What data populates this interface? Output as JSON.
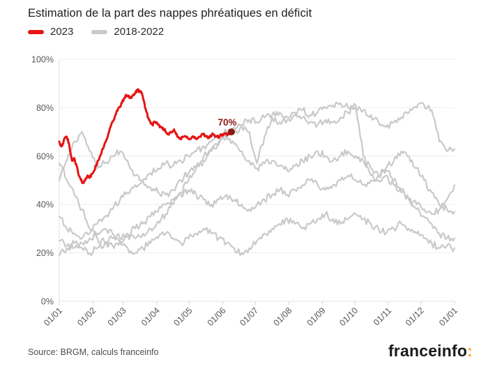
{
  "header": {
    "title": "Estimation de la part des nappes phréatiques en déficit"
  },
  "legend": [
    {
      "label": "2023",
      "color": "#e51515"
    },
    {
      "label": "2018-2022",
      "color": "#c9c9c9"
    }
  ],
  "footer": {
    "source": "Source: BRGM, calculs franceinfo",
    "logo_text": "franceinfo",
    "logo_colon": ":",
    "logo_colon_color": "#f9a51b"
  },
  "chart_data": {
    "type": "line",
    "title": "Estimation de la part des nappes phréatiques en déficit",
    "xlabel": "",
    "ylabel": "",
    "x_unit": "day_of_year",
    "xlim_days": [
      0,
      365
    ],
    "ylim": [
      0,
      100
    ],
    "grid": "horizontal",
    "legend_position": "top-left",
    "y_ticks": [
      0,
      20,
      40,
      60,
      80,
      100
    ],
    "y_tick_labels": [
      "0%",
      "20%",
      "40%",
      "60%",
      "80%",
      "100%"
    ],
    "x_tick_days": [
      0,
      31,
      59,
      90,
      120,
      151,
      181,
      212,
      243,
      273,
      304,
      334,
      365
    ],
    "x_tick_labels": [
      "01/01",
      "01/02",
      "01/03",
      "01/04",
      "01/05",
      "01/06",
      "01/07",
      "01/08",
      "01/09",
      "01/10",
      "01/11",
      "01/12",
      "01/01"
    ],
    "axis_color": "#e3e3e3",
    "grid_color": "#eeeeee",
    "tick_color": "#d8d8d8",
    "label_color": "#55565a",
    "annotation": {
      "text": "70%",
      "color": "#8c1713"
    },
    "series": [
      {
        "name": "2023",
        "color": "#e51515",
        "width": 3,
        "noise": 0.6,
        "points": [
          [
            0,
            66
          ],
          [
            2,
            64
          ],
          [
            4,
            66
          ],
          [
            6,
            68
          ],
          [
            8,
            67
          ],
          [
            10,
            62
          ],
          [
            12,
            58
          ],
          [
            14,
            59
          ],
          [
            16,
            56
          ],
          [
            18,
            52
          ],
          [
            20,
            50
          ],
          [
            22,
            49
          ],
          [
            24,
            50
          ],
          [
            26,
            52
          ],
          [
            28,
            51
          ],
          [
            31,
            53
          ],
          [
            34,
            56
          ],
          [
            37,
            59
          ],
          [
            40,
            63
          ],
          [
            43,
            66
          ],
          [
            46,
            70
          ],
          [
            49,
            74
          ],
          [
            52,
            77
          ],
          [
            55,
            80
          ],
          [
            58,
            82
          ],
          [
            60,
            84
          ],
          [
            62,
            85
          ],
          [
            64,
            85
          ],
          [
            66,
            84
          ],
          [
            68,
            85
          ],
          [
            70,
            86
          ],
          [
            72,
            87
          ],
          [
            74,
            87
          ],
          [
            76,
            86
          ],
          [
            78,
            83
          ],
          [
            80,
            79
          ],
          [
            82,
            76
          ],
          [
            84,
            74
          ],
          [
            86,
            73
          ],
          [
            88,
            74
          ],
          [
            91,
            73
          ],
          [
            94,
            72
          ],
          [
            97,
            71
          ],
          [
            100,
            69
          ],
          [
            103,
            70
          ],
          [
            106,
            71
          ],
          [
            109,
            68
          ],
          [
            112,
            67
          ],
          [
            115,
            68
          ],
          [
            118,
            68
          ],
          [
            121,
            67
          ],
          [
            124,
            68
          ],
          [
            127,
            67
          ],
          [
            130,
            68
          ],
          [
            133,
            69
          ],
          [
            136,
            68
          ],
          [
            139,
            68
          ],
          [
            142,
            69
          ],
          [
            145,
            68
          ],
          [
            148,
            68
          ],
          [
            151,
            69
          ],
          [
            154,
            69
          ],
          [
            157,
            69
          ],
          [
            159,
            70
          ]
        ],
        "end_marker": {
          "value_label": "70%",
          "dot_color": "#8c1713",
          "dot_radius": 5
        }
      },
      {
        "name": "2018",
        "color": "#c9c9c9",
        "width": 2.2,
        "noise": 1.5,
        "step_days": 7.019,
        "values": [
          50,
          58,
          66,
          70,
          62,
          55,
          57,
          60,
          62,
          58,
          52,
          50,
          47,
          45,
          44,
          46,
          50,
          53,
          55,
          58,
          62,
          65,
          68,
          70,
          72,
          70,
          57,
          68,
          76,
          74,
          75,
          77,
          76,
          74,
          73,
          75,
          74,
          76,
          78,
          80,
          79,
          77,
          74,
          72,
          74,
          76,
          78,
          80,
          81,
          79,
          66,
          62,
          63
        ]
      },
      {
        "name": "2019",
        "color": "#c9c9c9",
        "width": 2.2,
        "noise": 1.5,
        "step_days": 7.019,
        "values": [
          35,
          30,
          28,
          26,
          28,
          32,
          35,
          38,
          42,
          45,
          48,
          50,
          53,
          55,
          57,
          56,
          58,
          60,
          62,
          64,
          66,
          68,
          70,
          72,
          73,
          75,
          74,
          76,
          77,
          78,
          76,
          78,
          79,
          77,
          78,
          80,
          81,
          82,
          80,
          81,
          60,
          52,
          50,
          52,
          48,
          45,
          42,
          38,
          35,
          32,
          28,
          26,
          26
        ]
      },
      {
        "name": "2020",
        "color": "#c9c9c9",
        "width": 2.2,
        "noise": 1.5,
        "step_days": 7.019,
        "values": [
          57,
          50,
          44,
          38,
          30,
          26,
          24,
          23,
          25,
          27,
          26,
          28,
          30,
          33,
          36,
          40,
          45,
          50,
          55,
          60,
          63,
          66,
          68,
          65,
          62,
          58,
          55,
          57,
          58,
          56,
          54,
          56,
          58,
          60,
          62,
          60,
          58,
          60,
          62,
          60,
          58,
          55,
          52,
          55,
          58,
          62,
          60,
          55,
          50,
          45,
          40,
          38,
          37
        ]
      },
      {
        "name": "2021",
        "color": "#c9c9c9",
        "width": 2.2,
        "noise": 1.5,
        "step_days": 7.019,
        "values": [
          25,
          23,
          22,
          24,
          26,
          28,
          30,
          28,
          26,
          28,
          30,
          32,
          35,
          37,
          40,
          42,
          44,
          46,
          44,
          42,
          40,
          42,
          44,
          42,
          40,
          38,
          40,
          42,
          44,
          46,
          44,
          46,
          48,
          50,
          48,
          46,
          48,
          50,
          52,
          50,
          48,
          50,
          52,
          54,
          50,
          46,
          42,
          40,
          38,
          36,
          38,
          42,
          48
        ]
      },
      {
        "name": "2022",
        "color": "#c9c9c9",
        "width": 2.2,
        "noise": 1.5,
        "step_days": 7.019,
        "values": [
          19,
          22,
          24,
          22,
          20,
          22,
          24,
          26,
          24,
          22,
          20,
          22,
          24,
          26,
          28,
          26,
          24,
          26,
          28,
          30,
          28,
          26,
          24,
          22,
          20,
          22,
          25,
          28,
          30,
          32,
          34,
          32,
          30,
          32,
          34,
          36,
          34,
          32,
          34,
          36,
          34,
          32,
          30,
          28,
          30,
          32,
          30,
          28,
          26,
          24,
          22,
          23,
          22
        ]
      }
    ]
  }
}
